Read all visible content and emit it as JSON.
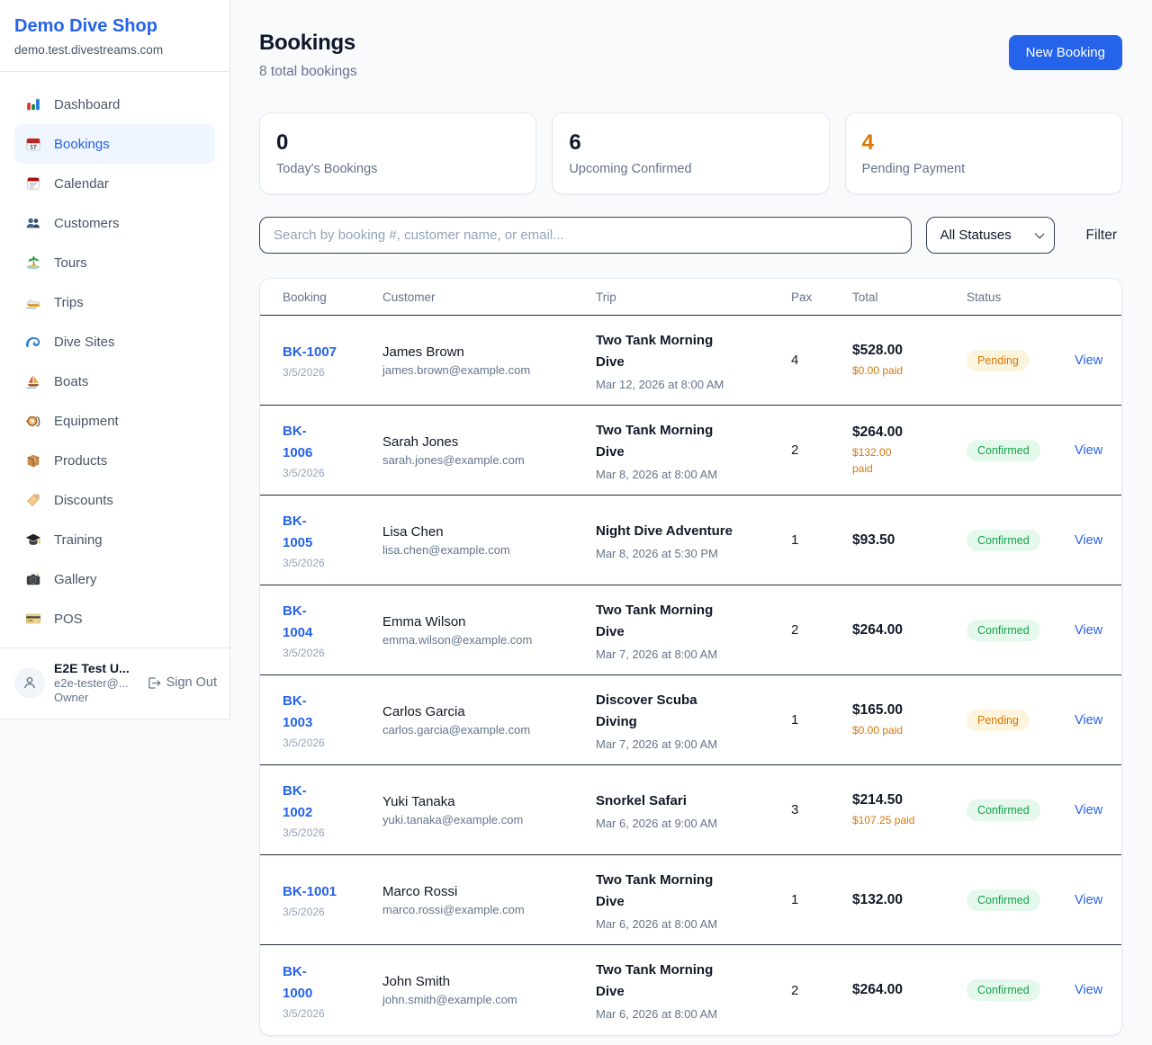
{
  "sidebar": {
    "shop_name": "Demo Dive Shop",
    "domain": "demo.test.divestreams.com",
    "items": [
      {
        "label": "Dashboard",
        "icon": "dashboard-icon",
        "active": false
      },
      {
        "label": "Bookings",
        "icon": "bookings-icon",
        "active": true
      },
      {
        "label": "Calendar",
        "icon": "calendar-icon",
        "active": false
      },
      {
        "label": "Customers",
        "icon": "customers-icon",
        "active": false
      },
      {
        "label": "Tours",
        "icon": "tours-icon",
        "active": false
      },
      {
        "label": "Trips",
        "icon": "trips-icon",
        "active": false
      },
      {
        "label": "Dive Sites",
        "icon": "dive-sites-icon",
        "active": false
      },
      {
        "label": "Boats",
        "icon": "boats-icon",
        "active": false
      },
      {
        "label": "Equipment",
        "icon": "equipment-icon",
        "active": false
      },
      {
        "label": "Products",
        "icon": "products-icon",
        "active": false
      },
      {
        "label": "Discounts",
        "icon": "discounts-icon",
        "active": false
      },
      {
        "label": "Training",
        "icon": "training-icon",
        "active": false
      },
      {
        "label": "Gallery",
        "icon": "gallery-icon",
        "active": false
      },
      {
        "label": "POS",
        "icon": "pos-icon",
        "active": false
      }
    ],
    "user": {
      "name": "E2E Test U...",
      "email": "e2e-tester@...",
      "role": "Owner",
      "sign_out_label": "Sign Out"
    }
  },
  "header": {
    "title": "Bookings",
    "subtitle": "8 total bookings",
    "new_booking_label": "New Booking"
  },
  "stats": [
    {
      "value": "0",
      "label": "Today's Bookings",
      "color": "#0f172a"
    },
    {
      "value": "6",
      "label": "Upcoming Confirmed",
      "color": "#0f172a"
    },
    {
      "value": "4",
      "label": "Pending Payment",
      "color": "#d97706"
    }
  ],
  "toolbar": {
    "search_placeholder": "Search by booking #, customer name, or email...",
    "status_filter_value": "All Statuses",
    "filter_label": "Filter"
  },
  "table": {
    "columns": [
      "Booking",
      "Customer",
      "Trip",
      "Pax",
      "Total",
      "Status"
    ],
    "view_label": "View",
    "rows": [
      {
        "id": "BK-1007",
        "date": "3/5/2026",
        "customer": "James Brown",
        "email": "james.brown@example.com",
        "trip": "Two Tank Morning\nDive",
        "trip_date": "Mar 12, 2026 at 8:00 AM",
        "pax": "4",
        "total": "$528.00",
        "paid": "$0.00 paid",
        "status": "Pending"
      },
      {
        "id": "BK-\n1006",
        "date": "3/5/2026",
        "customer": "Sarah Jones",
        "email": "sarah.jones@example.com",
        "trip": "Two Tank Morning\nDive",
        "trip_date": "Mar 8, 2026 at 8:00 AM",
        "pax": "2",
        "total": "$264.00",
        "paid": "$132.00\npaid",
        "status": "Confirmed"
      },
      {
        "id": "BK-\n1005",
        "date": "3/5/2026",
        "customer": "Lisa Chen",
        "email": "lisa.chen@example.com",
        "trip": "Night Dive Adventure",
        "trip_date": "Mar 8, 2026 at 5:30 PM",
        "pax": "1",
        "total": "$93.50",
        "paid": "",
        "status": "Confirmed"
      },
      {
        "id": "BK-\n1004",
        "date": "3/5/2026",
        "customer": "Emma Wilson",
        "email": "emma.wilson@example.com",
        "trip": "Two Tank Morning\nDive",
        "trip_date": "Mar 7, 2026 at 8:00 AM",
        "pax": "2",
        "total": "$264.00",
        "paid": "",
        "status": "Confirmed"
      },
      {
        "id": "BK-\n1003",
        "date": "3/5/2026",
        "customer": "Carlos Garcia",
        "email": "carlos.garcia@example.com",
        "trip": "Discover Scuba\nDiving",
        "trip_date": "Mar 7, 2026 at 9:00 AM",
        "pax": "1",
        "total": "$165.00",
        "paid": "$0.00 paid",
        "status": "Pending"
      },
      {
        "id": "BK-\n1002",
        "date": "3/5/2026",
        "customer": "Yuki Tanaka",
        "email": "yuki.tanaka@example.com",
        "trip": "Snorkel Safari",
        "trip_date": "Mar 6, 2026 at 9:00 AM",
        "pax": "3",
        "total": "$214.50",
        "paid": "$107.25 paid",
        "status": "Confirmed"
      },
      {
        "id": "BK-1001",
        "date": "3/5/2026",
        "customer": "Marco Rossi",
        "email": "marco.rossi@example.com",
        "trip": "Two Tank Morning\nDive",
        "trip_date": "Mar 6, 2026 at 8:00 AM",
        "pax": "1",
        "total": "$132.00",
        "paid": "",
        "status": "Confirmed"
      },
      {
        "id": "BK-\n1000",
        "date": "3/5/2026",
        "customer": "John Smith",
        "email": "john.smith@example.com",
        "trip": "Two Tank Morning\nDive",
        "trip_date": "Mar 6, 2026 at 8:00 AM",
        "pax": "2",
        "total": "$264.00",
        "paid": "",
        "status": "Confirmed"
      }
    ]
  },
  "colors": {
    "accent": "#2563eb",
    "pending_text": "#d97706",
    "pending_bg": "#fdf4dd",
    "confirmed_text": "#16a34a",
    "confirmed_bg": "#e4f8ec",
    "row_divider": "#1e293b"
  }
}
